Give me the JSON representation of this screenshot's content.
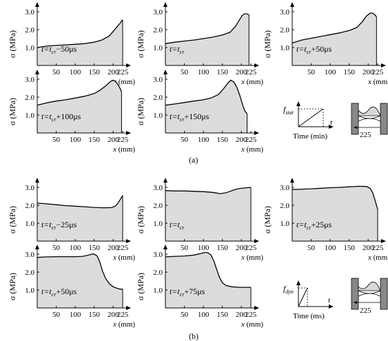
{
  "chart_data": [
    {
      "type": "area",
      "panel": "(a)",
      "label": {
        "prefix": "t=t",
        "sub": "cr",
        "suffix": "−50μs"
      },
      "ylabel": "σ (MPa)",
      "xlabel": "x  (mm)",
      "xlim": [
        0,
        225
      ],
      "ylim": [
        0,
        3.0
      ],
      "x_ticks": [
        "50",
        "100",
        "150",
        "200",
        "225"
      ],
      "y_ticks": [
        "1.0",
        "2.0",
        "3.0"
      ],
      "x": [
        0,
        25,
        50,
        75,
        100,
        125,
        150,
        170,
        190,
        200,
        210,
        218,
        225
      ],
      "y": [
        1.0,
        1.08,
        1.12,
        1.15,
        1.18,
        1.22,
        1.3,
        1.42,
        1.65,
        1.9,
        2.15,
        2.35,
        2.55
      ]
    },
    {
      "type": "area",
      "panel": "(a)",
      "label": {
        "prefix": "t=t",
        "sub": "cr",
        "suffix": ""
      },
      "ylabel": "σ (MPa)",
      "xlabel": "x  (mm)",
      "xlim": [
        0,
        225
      ],
      "ylim": [
        0,
        3.0
      ],
      "x_ticks": [
        "50",
        "100",
        "150",
        "200",
        "225"
      ],
      "y_ticks": [
        "1.0",
        "2.0",
        "3.0"
      ],
      "x": [
        0,
        25,
        50,
        75,
        100,
        125,
        150,
        170,
        185,
        195,
        202,
        208,
        215,
        220
      ],
      "y": [
        1.22,
        1.3,
        1.36,
        1.42,
        1.5,
        1.58,
        1.7,
        1.85,
        2.2,
        2.55,
        2.78,
        2.88,
        2.88,
        2.82
      ]
    },
    {
      "type": "area",
      "panel": "(a)",
      "label": {
        "prefix": "t=t",
        "sub": "cr",
        "suffix": "+50μs"
      },
      "ylabel": "σ (MPa)",
      "xlabel": "x  (mm)",
      "xlim": [
        0,
        225
      ],
      "ylim": [
        0,
        3.0
      ],
      "x_ticks": [
        "50",
        "100",
        "150",
        "200",
        "225"
      ],
      "y_ticks": [
        "1.0",
        "2.0",
        "3.0"
      ],
      "x": [
        0,
        25,
        50,
        75,
        100,
        125,
        150,
        170,
        185,
        195,
        205,
        212,
        218,
        222
      ],
      "y": [
        1.25,
        1.42,
        1.52,
        1.62,
        1.72,
        1.82,
        1.95,
        2.12,
        2.45,
        2.75,
        2.92,
        2.92,
        2.82,
        2.72
      ]
    },
    {
      "type": "area",
      "panel": "(a)",
      "label": {
        "prefix": "t=t",
        "sub": "cr",
        "suffix": "+100μs"
      },
      "ylabel": "σ (MPa)",
      "xlabel": "x  (mm)",
      "xlim": [
        0,
        225
      ],
      "ylim": [
        0,
        3.0
      ],
      "x_ticks": [
        "50",
        "100",
        "150",
        "200",
        "225"
      ],
      "y_ticks": [
        "1.0",
        "2.0",
        "3.0"
      ],
      "x": [
        0,
        25,
        50,
        75,
        100,
        125,
        150,
        165,
        180,
        190,
        198,
        205,
        212,
        218,
        222
      ],
      "y": [
        1.55,
        1.68,
        1.78,
        1.85,
        1.95,
        2.05,
        2.2,
        2.38,
        2.62,
        2.82,
        2.95,
        2.9,
        2.72,
        2.5,
        2.3
      ]
    },
    {
      "type": "area",
      "panel": "(a)",
      "label": {
        "prefix": "t=t",
        "sub": "cr",
        "suffix": "+150μs"
      },
      "ylabel": "σ (MPa)",
      "xlabel": "x  (mm)",
      "xlim": [
        0,
        225
      ],
      "ylim": [
        0,
        3.0
      ],
      "x_ticks": [
        "50",
        "100",
        "150",
        "200",
        "225"
      ],
      "y_ticks": [
        "1.0",
        "2.0",
        "3.0"
      ],
      "x": [
        0,
        25,
        50,
        75,
        100,
        120,
        140,
        155,
        165,
        172,
        180,
        188,
        195,
        200,
        205,
        210,
        215
      ],
      "y": [
        1.55,
        1.62,
        1.7,
        1.78,
        1.85,
        1.95,
        2.15,
        2.52,
        2.8,
        2.95,
        2.85,
        2.55,
        2.15,
        1.82,
        1.45,
        1.2,
        1.08
      ]
    },
    {
      "type": "area",
      "panel": "(b)",
      "label": {
        "prefix": "t=t",
        "sub": "cr",
        "suffix": "−25μs"
      },
      "ylabel": "σ (MPa)",
      "xlabel": "x  (mm)",
      "xlim": [
        0,
        225
      ],
      "ylim": [
        0,
        3.0
      ],
      "x_ticks": [
        "50",
        "100",
        "150",
        "200",
        "225"
      ],
      "y_ticks": [
        "1.0",
        "2.0",
        "3.0"
      ],
      "x": [
        0,
        25,
        50,
        75,
        100,
        125,
        150,
        175,
        195,
        205,
        212,
        218,
        225
      ],
      "y": [
        2.12,
        2.08,
        2.03,
        1.98,
        1.95,
        1.92,
        1.88,
        1.86,
        1.87,
        1.95,
        2.1,
        2.3,
        2.55
      ]
    },
    {
      "type": "area",
      "panel": "(b)",
      "label": {
        "prefix": "t=t",
        "sub": "cr",
        "suffix": ""
      },
      "ylabel": "σ (MPa)",
      "xlabel": "x  (mm)",
      "xlim": [
        0,
        225
      ],
      "ylim": [
        0,
        3.0
      ],
      "x_ticks": [
        "50",
        "100",
        "150",
        "200",
        "225"
      ],
      "y_ticks": [
        "1.0",
        "2.0",
        "3.0"
      ],
      "x": [
        0,
        25,
        50,
        75,
        100,
        125,
        145,
        160,
        175,
        190,
        205,
        215,
        225
      ],
      "y": [
        2.82,
        2.8,
        2.8,
        2.78,
        2.76,
        2.72,
        2.65,
        2.7,
        2.82,
        2.92,
        2.96,
        2.98,
        3.0
      ]
    },
    {
      "type": "area",
      "panel": "(b)",
      "label": {
        "prefix": "t=t",
        "sub": "cr",
        "suffix": "+25μs"
      },
      "ylabel": "σ (MPa)",
      "xlabel": "x  (mm)",
      "xlim": [
        0,
        225
      ],
      "ylim": [
        0,
        3.0
      ],
      "x_ticks": [
        "50",
        "100",
        "150",
        "200",
        "225"
      ],
      "y_ticks": [
        "1.0",
        "2.0",
        "3.0"
      ],
      "x": [
        0,
        25,
        50,
        75,
        100,
        125,
        150,
        175,
        195,
        205,
        212,
        218,
        222,
        225
      ],
      "y": [
        2.88,
        2.9,
        2.92,
        2.95,
        2.98,
        3.0,
        3.03,
        3.06,
        3.05,
        2.95,
        2.7,
        2.3,
        2.0,
        1.78
      ]
    },
    {
      "type": "area",
      "panel": "(b)",
      "label": {
        "prefix": "t=t",
        "sub": "cr",
        "suffix": "+50μs"
      },
      "ylabel": "σ (MPa)",
      "xlabel": "x  (mm)",
      "xlim": [
        0,
        225
      ],
      "ylim": [
        0,
        3.0
      ],
      "x_ticks": [
        "50",
        "100",
        "150",
        "200",
        "225"
      ],
      "y_ticks": [
        "1.0",
        "2.0",
        "3.0"
      ],
      "x": [
        0,
        25,
        50,
        75,
        100,
        120,
        135,
        148,
        158,
        165,
        172,
        180,
        190,
        200,
        210,
        218,
        225
      ],
      "y": [
        2.82,
        2.85,
        2.86,
        2.86,
        2.86,
        2.88,
        2.95,
        3.02,
        2.9,
        2.55,
        2.05,
        1.65,
        1.35,
        1.18,
        1.1,
        1.05,
        1.05
      ]
    },
    {
      "type": "area",
      "panel": "(b)",
      "label": {
        "prefix": "t=t",
        "sub": "cr",
        "suffix": "+75μs"
      },
      "ylabel": "σ (MPa)",
      "xlabel": "x  (mm)",
      "xlim": [
        0,
        225
      ],
      "ylim": [
        0,
        3.0
      ],
      "x_ticks": [
        "50",
        "100",
        "150",
        "200",
        "225"
      ],
      "y_ticks": [
        "1.0",
        "2.0",
        "3.0"
      ],
      "x": [
        0,
        25,
        50,
        75,
        95,
        105,
        112,
        120,
        128,
        135,
        142,
        150,
        160,
        175,
        195,
        215,
        225
      ],
      "y": [
        2.85,
        2.88,
        2.9,
        2.95,
        3.05,
        3.1,
        3.08,
        2.95,
        2.6,
        2.15,
        1.72,
        1.4,
        1.25,
        1.18,
        1.15,
        1.15,
        1.15
      ]
    }
  ],
  "insets": [
    {
      "panel": "(a)",
      "force_symbol": "f",
      "force_sub": "stat",
      "t_label": "t",
      "time_label": "Time (min)",
      "dim_label": "225"
    },
    {
      "panel": "(b)",
      "force_symbol": "f",
      "force_sub": "dyn",
      "t_label": "t",
      "time_label": "Time (ms)",
      "dim_label": "225"
    }
  ],
  "captions": {
    "a": "(a)",
    "b": "(b)"
  }
}
